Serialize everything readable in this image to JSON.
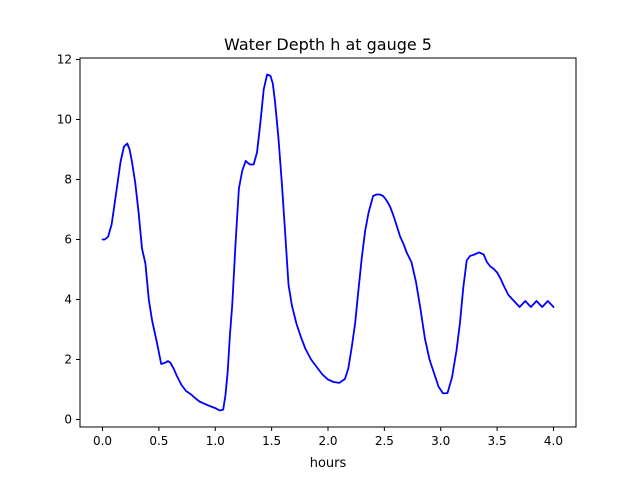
{
  "chart_data": {
    "type": "line",
    "title": "Water Depth h at gauge 5",
    "xlabel": "hours",
    "ylabel": "",
    "xlim": [
      -0.2,
      4.2
    ],
    "ylim": [
      -0.25,
      12.05
    ],
    "xticks": [
      {
        "value": 0.0,
        "label": "0.0"
      },
      {
        "value": 0.5,
        "label": "0.5"
      },
      {
        "value": 1.0,
        "label": "1.0"
      },
      {
        "value": 1.5,
        "label": "1.5"
      },
      {
        "value": 2.0,
        "label": "2.0"
      },
      {
        "value": 2.5,
        "label": "2.5"
      },
      {
        "value": 3.0,
        "label": "3.0"
      },
      {
        "value": 3.5,
        "label": "3.5"
      },
      {
        "value": 4.0,
        "label": "4.0"
      }
    ],
    "yticks": [
      {
        "value": 0,
        "label": "0"
      },
      {
        "value": 2,
        "label": "2"
      },
      {
        "value": 4,
        "label": "4"
      },
      {
        "value": 6,
        "label": "6"
      },
      {
        "value": 8,
        "label": "8"
      },
      {
        "value": 10,
        "label": "10"
      },
      {
        "value": 12,
        "label": "12"
      }
    ],
    "grid": false,
    "legend": false,
    "line_color": "#0000ff",
    "series": [
      {
        "x": [
          0.0,
          0.02,
          0.05,
          0.08,
          0.1,
          0.13,
          0.16,
          0.19,
          0.22,
          0.24,
          0.26,
          0.29,
          0.32,
          0.35,
          0.38,
          0.41,
          0.44,
          0.48,
          0.52,
          0.56,
          0.58,
          0.6,
          0.63,
          0.66,
          0.7,
          0.74,
          0.78,
          0.82,
          0.86,
          0.9,
          0.95,
          1.0,
          1.04,
          1.07,
          1.09,
          1.11,
          1.13,
          1.15,
          1.18,
          1.21,
          1.24,
          1.27,
          1.29,
          1.31,
          1.34,
          1.37,
          1.4,
          1.43,
          1.46,
          1.49,
          1.51,
          1.53,
          1.56,
          1.59,
          1.62,
          1.65,
          1.68,
          1.72,
          1.76,
          1.8,
          1.85,
          1.9,
          1.95,
          2.0,
          2.05,
          2.1,
          2.15,
          2.18,
          2.21,
          2.24,
          2.27,
          2.3,
          2.33,
          2.36,
          2.4,
          2.43,
          2.46,
          2.49,
          2.52,
          2.55,
          2.58,
          2.61,
          2.64,
          2.67,
          2.7,
          2.74,
          2.78,
          2.82,
          2.86,
          2.9,
          2.94,
          2.98,
          3.02,
          3.06,
          3.1,
          3.14,
          3.17,
          3.2,
          3.23,
          3.26,
          3.3,
          3.34,
          3.38,
          3.41,
          3.44,
          3.47,
          3.5,
          3.53,
          3.56,
          3.6,
          3.65,
          3.7,
          3.75,
          3.8,
          3.85,
          3.9,
          3.95,
          4.0
        ],
        "y": [
          6.0,
          6.0,
          6.1,
          6.5,
          7.0,
          7.8,
          8.6,
          9.1,
          9.2,
          9.0,
          8.6,
          7.9,
          6.9,
          5.7,
          5.2,
          4.0,
          3.3,
          2.6,
          1.85,
          1.9,
          1.95,
          1.9,
          1.7,
          1.45,
          1.15,
          0.95,
          0.85,
          0.72,
          0.6,
          0.53,
          0.45,
          0.38,
          0.3,
          0.33,
          0.8,
          1.6,
          2.8,
          3.8,
          5.9,
          7.7,
          8.3,
          8.62,
          8.55,
          8.5,
          8.5,
          8.9,
          9.9,
          11.0,
          11.5,
          11.45,
          11.2,
          10.6,
          9.4,
          7.9,
          6.2,
          4.5,
          3.8,
          3.2,
          2.75,
          2.35,
          2.0,
          1.75,
          1.5,
          1.33,
          1.25,
          1.22,
          1.35,
          1.7,
          2.4,
          3.2,
          4.3,
          5.4,
          6.3,
          6.9,
          7.45,
          7.5,
          7.5,
          7.45,
          7.3,
          7.1,
          6.8,
          6.45,
          6.1,
          5.85,
          5.55,
          5.25,
          4.6,
          3.7,
          2.7,
          2.0,
          1.55,
          1.1,
          0.87,
          0.88,
          1.4,
          2.3,
          3.2,
          4.4,
          5.3,
          5.45,
          5.5,
          5.57,
          5.5,
          5.25,
          5.1,
          5.02,
          4.9,
          4.7,
          4.45,
          4.15,
          3.95,
          3.75,
          3.95,
          3.75,
          3.95,
          3.75,
          3.95,
          3.75
        ]
      }
    ]
  }
}
